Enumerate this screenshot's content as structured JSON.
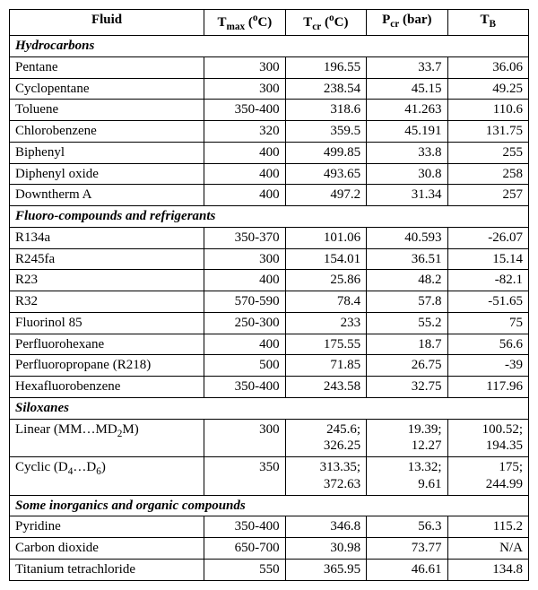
{
  "headers": {
    "fluid": "Fluid",
    "tmax_html": "T<span class='sub'>max</span> (<span class='sup'>o</span>C)",
    "tcr_html": "T<span class='sub'>cr</span> (<span class='sup'>o</span>C)",
    "pcr_html": "P<span class='sub'>cr</span> (bar)",
    "tb_html": "T<span class='sub'>B</span>"
  },
  "groups": [
    {
      "title": "Hydrocarbons",
      "rows": [
        {
          "name": "Pentane",
          "tmax": "300",
          "tcr": "196.55",
          "pcr": "33.7",
          "tb": "36.06"
        },
        {
          "name": "Cyclopentane",
          "tmax": "300",
          "tcr": "238.54",
          "pcr": "45.15",
          "tb": "49.25"
        },
        {
          "name": "Toluene",
          "tmax": "350-400",
          "tcr": "318.6",
          "pcr": "41.263",
          "tb": "110.6"
        },
        {
          "name": "Chlorobenzene",
          "tmax": "320",
          "tcr": "359.5",
          "pcr": "45.191",
          "tb": "131.75"
        },
        {
          "name": "Biphenyl",
          "tmax": "400",
          "tcr": "499.85",
          "pcr": "33.8",
          "tb": "255"
        },
        {
          "name": "Diphenyl oxide",
          "tmax": "400",
          "tcr": "493.65",
          "pcr": "30.8",
          "tb": "258"
        },
        {
          "name": "Downtherm A",
          "tmax": "400",
          "tcr": "497.2",
          "pcr": "31.34",
          "tb": "257"
        }
      ]
    },
    {
      "title": "Fluoro-compounds and refrigerants",
      "rows": [
        {
          "name": "R134a",
          "tmax": "350-370",
          "tcr": "101.06",
          "pcr": "40.593",
          "tb": "-26.07"
        },
        {
          "name": "R245fa",
          "tmax": "300",
          "tcr": "154.01",
          "pcr": "36.51",
          "tb": "15.14"
        },
        {
          "name": "R23",
          "tmax": "400",
          "tcr": "25.86",
          "pcr": "48.2",
          "tb": "-82.1"
        },
        {
          "name": "R32",
          "tmax": "570-590",
          "tcr": "78.4",
          "pcr": "57.8",
          "tb": "-51.65"
        },
        {
          "name": "Fluorinol 85",
          "tmax": "250-300",
          "tcr": "233",
          "pcr": "55.2",
          "tb": "75"
        },
        {
          "name": "Perfluorohexane",
          "tmax": "400",
          "tcr": "175.55",
          "pcr": "18.7",
          "tb": "56.6"
        },
        {
          "name": "Perfluoropropane (R218)",
          "tmax": "500",
          "tcr": "71.85",
          "pcr": "26.75",
          "tb": "-39"
        },
        {
          "name": "Hexafluorobenzene",
          "tmax": "350-400",
          "tcr": "243.58",
          "pcr": "32.75",
          "tb": "117.96"
        }
      ]
    },
    {
      "title": "Siloxanes",
      "rows": [
        {
          "name_html": "Linear (MM…MD<span class='sub'>2</span>M)",
          "tmax": "300",
          "tcr_html": "245.6;<br>326.25",
          "pcr_html": "19.39;<br>12.27",
          "tb_html": "100.52;<br>194.35"
        },
        {
          "name_html": "Cyclic (D<span class='sub'>4</span>…D<span class='sub'>6</span>)",
          "tmax": "350",
          "tcr_html": "313.35;<br>372.63",
          "pcr_html": "13.32;<br>9.61",
          "tb_html": "175;<br>244.99"
        }
      ]
    },
    {
      "title": "Some inorganics and organic compounds",
      "rows": [
        {
          "name": "Pyridine",
          "tmax": "350-400",
          "tcr": "346.8",
          "pcr": "56.3",
          "tb": "115.2"
        },
        {
          "name": "Carbon dioxide",
          "tmax": "650-700",
          "tcr": "30.98",
          "pcr": "73.77",
          "tb": "N/A"
        },
        {
          "name": "Titanium tetrachloride",
          "tmax": "550",
          "tcr": "365.95",
          "pcr": "46.61",
          "tb": "134.8"
        }
      ]
    }
  ]
}
